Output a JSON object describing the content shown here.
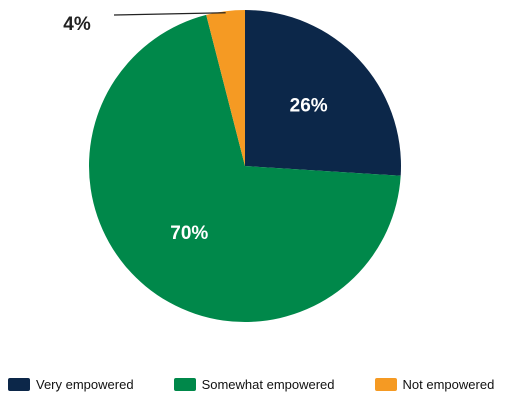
{
  "chart_data": {
    "type": "pie",
    "categories": [
      "Very empowered",
      "Somewhat empowered",
      "Not empowered"
    ],
    "values": [
      26,
      70,
      4
    ],
    "labels": [
      "26%",
      "70%",
      "4%"
    ],
    "colors": [
      "#0c2749",
      "#00884a",
      "#f59a23"
    ],
    "label_colors": [
      "#ffffff",
      "#ffffff",
      "#222222"
    ],
    "title": "",
    "legend_position": "bottom"
  }
}
